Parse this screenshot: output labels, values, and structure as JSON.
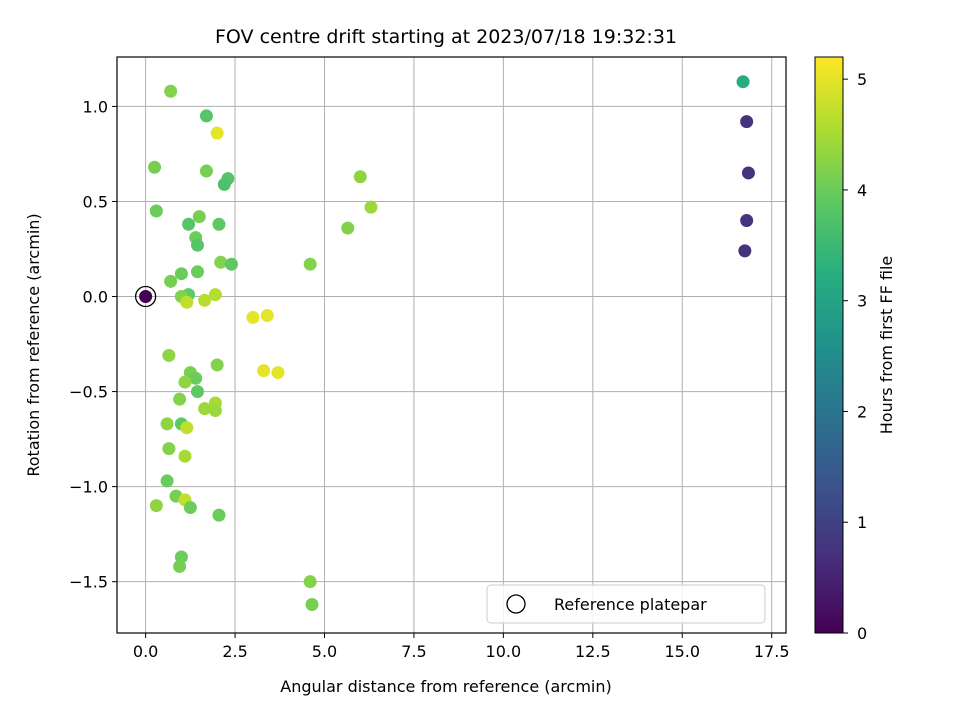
{
  "chart_data": {
    "type": "scatter",
    "title": "FOV centre drift starting at 2023/07/18 19:32:31",
    "xlabel": "Angular distance from reference (arcmin)",
    "ylabel": "Rotation from reference (arcmin)",
    "xlim": [
      -0.8,
      17.9
    ],
    "ylim": [
      -1.77,
      1.26
    ],
    "xticks": [
      0.0,
      2.5,
      5.0,
      7.5,
      10.0,
      12.5,
      15.0,
      17.5
    ],
    "xtick_labels": [
      "0.0",
      "2.5",
      "5.0",
      "7.5",
      "10.0",
      "12.5",
      "15.0",
      "17.5"
    ],
    "yticks": [
      -1.5,
      -1.0,
      -0.5,
      0.0,
      0.5,
      1.0
    ],
    "ytick_labels": [
      "−1.5",
      "−1.0",
      "−0.5",
      "0.0",
      "0.5",
      "1.0"
    ],
    "grid": true,
    "colormap": "viridis",
    "colorbar": {
      "label": "Hours from first FF file",
      "range": [
        0,
        5.2
      ],
      "ticks": [
        0,
        1,
        2,
        3,
        4,
        5
      ],
      "tick_labels": [
        "0",
        "1",
        "2",
        "3",
        "4",
        "5"
      ]
    },
    "legend": {
      "placement": "lower-right",
      "entries": [
        {
          "label": "Reference platepar",
          "marker": "open-circle"
        }
      ]
    },
    "reference_point": {
      "x": 0.0,
      "y": 0.0,
      "c": 0.0
    },
    "points": [
      {
        "x": 16.7,
        "y": 1.13,
        "c": 3.2
      },
      {
        "x": 16.8,
        "y": 0.92,
        "c": 0.75
      },
      {
        "x": 16.85,
        "y": 0.65,
        "c": 0.75
      },
      {
        "x": 16.8,
        "y": 0.4,
        "c": 0.75
      },
      {
        "x": 16.75,
        "y": 0.24,
        "c": 0.75
      },
      {
        "x": 0.7,
        "y": 1.08,
        "c": 4.2
      },
      {
        "x": 1.7,
        "y": 0.95,
        "c": 3.8
      },
      {
        "x": 2.0,
        "y": 0.86,
        "c": 5.0
      },
      {
        "x": 0.25,
        "y": 0.68,
        "c": 4.1
      },
      {
        "x": 1.7,
        "y": 0.66,
        "c": 4.1
      },
      {
        "x": 2.3,
        "y": 0.62,
        "c": 3.8
      },
      {
        "x": 2.2,
        "y": 0.59,
        "c": 3.7
      },
      {
        "x": 6.0,
        "y": 0.63,
        "c": 4.3
      },
      {
        "x": 6.3,
        "y": 0.47,
        "c": 4.4
      },
      {
        "x": 0.3,
        "y": 0.45,
        "c": 4.0
      },
      {
        "x": 1.5,
        "y": 0.42,
        "c": 4.1
      },
      {
        "x": 1.2,
        "y": 0.38,
        "c": 3.8
      },
      {
        "x": 2.05,
        "y": 0.38,
        "c": 3.9
      },
      {
        "x": 5.65,
        "y": 0.36,
        "c": 4.2
      },
      {
        "x": 1.4,
        "y": 0.31,
        "c": 4.0
      },
      {
        "x": 1.45,
        "y": 0.27,
        "c": 3.8
      },
      {
        "x": 2.1,
        "y": 0.18,
        "c": 4.2
      },
      {
        "x": 2.4,
        "y": 0.17,
        "c": 3.9
      },
      {
        "x": 4.6,
        "y": 0.17,
        "c": 4.2
      },
      {
        "x": 1.0,
        "y": 0.12,
        "c": 4.0
      },
      {
        "x": 1.45,
        "y": 0.13,
        "c": 4.0
      },
      {
        "x": 0.7,
        "y": 0.08,
        "c": 4.1
      },
      {
        "x": 1.2,
        "y": 0.01,
        "c": 3.9
      },
      {
        "x": 1.0,
        "y": 0.0,
        "c": 4.2
      },
      {
        "x": 1.65,
        "y": -0.02,
        "c": 4.6
      },
      {
        "x": 1.95,
        "y": 0.01,
        "c": 4.6
      },
      {
        "x": 1.15,
        "y": -0.03,
        "c": 4.7
      },
      {
        "x": 3.0,
        "y": -0.11,
        "c": 5.0
      },
      {
        "x": 3.4,
        "y": -0.1,
        "c": 5.0
      },
      {
        "x": 0.65,
        "y": -0.31,
        "c": 4.3
      },
      {
        "x": 2.0,
        "y": -0.36,
        "c": 4.2
      },
      {
        "x": 3.3,
        "y": -0.39,
        "c": 5.0
      },
      {
        "x": 3.7,
        "y": -0.4,
        "c": 5.0
      },
      {
        "x": 1.25,
        "y": -0.4,
        "c": 4.1
      },
      {
        "x": 1.4,
        "y": -0.43,
        "c": 4.0
      },
      {
        "x": 1.1,
        "y": -0.45,
        "c": 4.3
      },
      {
        "x": 1.45,
        "y": -0.5,
        "c": 3.9
      },
      {
        "x": 0.95,
        "y": -0.54,
        "c": 4.2
      },
      {
        "x": 1.95,
        "y": -0.56,
        "c": 4.5
      },
      {
        "x": 1.65,
        "y": -0.59,
        "c": 4.4
      },
      {
        "x": 1.95,
        "y": -0.6,
        "c": 4.4
      },
      {
        "x": 0.6,
        "y": -0.67,
        "c": 4.3
      },
      {
        "x": 1.0,
        "y": -0.67,
        "c": 3.9
      },
      {
        "x": 1.15,
        "y": -0.69,
        "c": 4.7
      },
      {
        "x": 0.65,
        "y": -0.8,
        "c": 4.2
      },
      {
        "x": 1.1,
        "y": -0.84,
        "c": 4.5
      },
      {
        "x": 0.6,
        "y": -0.97,
        "c": 4.0
      },
      {
        "x": 0.85,
        "y": -1.05,
        "c": 4.1
      },
      {
        "x": 1.1,
        "y": -1.07,
        "c": 4.7
      },
      {
        "x": 0.3,
        "y": -1.1,
        "c": 4.3
      },
      {
        "x": 1.25,
        "y": -1.11,
        "c": 4.0
      },
      {
        "x": 2.05,
        "y": -1.15,
        "c": 4.0
      },
      {
        "x": 1.0,
        "y": -1.37,
        "c": 4.0
      },
      {
        "x": 0.95,
        "y": -1.42,
        "c": 4.1
      },
      {
        "x": 4.6,
        "y": -1.5,
        "c": 4.2
      },
      {
        "x": 4.65,
        "y": -1.62,
        "c": 4.1
      }
    ]
  }
}
